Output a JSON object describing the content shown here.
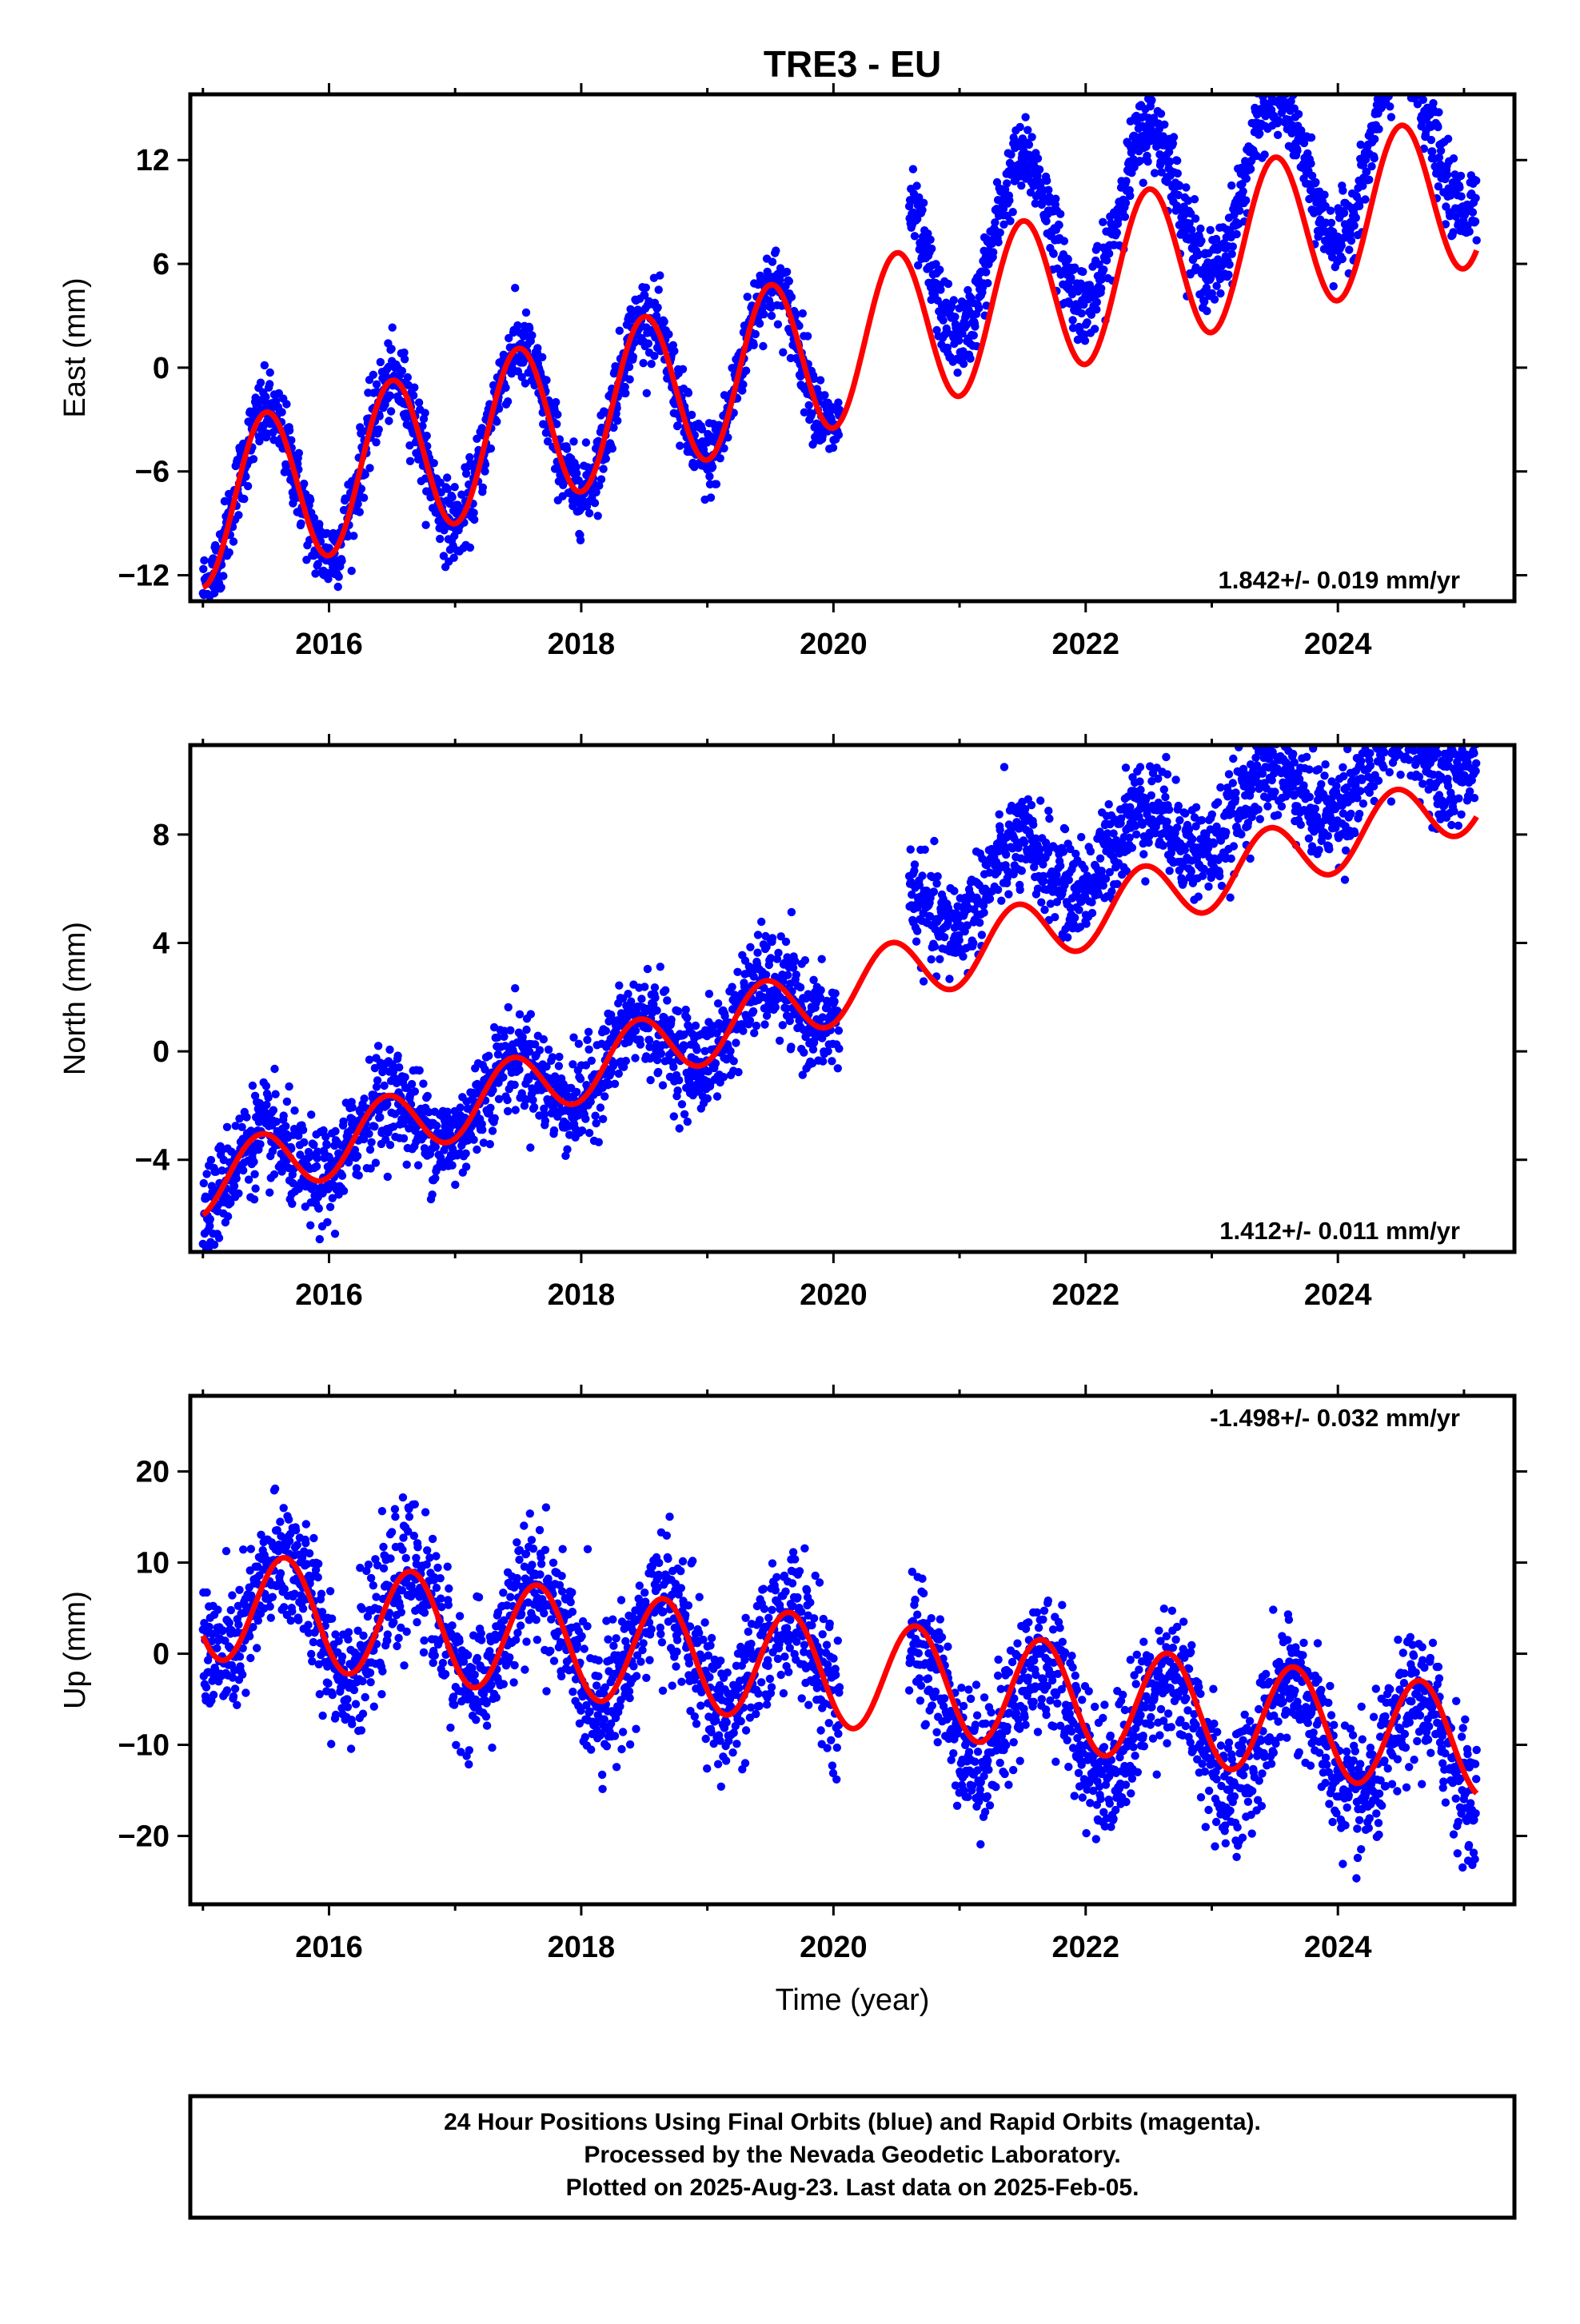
{
  "title": "TRE3 - EU",
  "colors": {
    "data_points": "#0000ff",
    "model_curve": "#ff0000",
    "frame": "#000000",
    "background": "#ffffff"
  },
  "xaxis": {
    "label": "Time (year)",
    "range": [
      2014.9,
      2025.4
    ],
    "major_ticks": [
      2016,
      2018,
      2020,
      2022,
      2024
    ],
    "minor_step": 1
  },
  "footer": {
    "line1": "24 Hour Positions Using Final Orbits (blue) and Rapid Orbits (magenta).",
    "line2": "Processed by the Nevada Geodetic Laboratory.",
    "line3": "Plotted on 2025-Aug-23. Last data on 2025-Feb-05."
  },
  "chart_data": [
    {
      "type": "scatter",
      "component": "east",
      "ylabel": "East (mm)",
      "ylim": [
        -13.5,
        15.8
      ],
      "yticks": [
        -12,
        -6,
        0,
        6,
        12
      ],
      "rate_text": "1.842+/- 0.019 mm/yr",
      "rate_position": "bottom-right",
      "data_gap": [
        2020.05,
        2020.6
      ],
      "observations": {
        "range": [
          2015.0,
          2025.1
        ],
        "scatter_mm": 1.1,
        "offset_mm_after_gap": 3.5,
        "approx_points": 3000,
        "model": {
          "reference_year": 2015.0,
          "value_at_reference_mm": -8.1,
          "rate_mm_per_yr": 1.842,
          "annual_amplitude_mm": 4.6,
          "annual_phase_year_fraction": 0.5
        }
      },
      "model_curve": {
        "range": [
          2015.0,
          2025.1
        ],
        "reference_year": 2015.0,
        "value_at_reference_mm": -8.1,
        "rate_mm_per_yr": 1.842,
        "annual_amplitude_mm": 4.6,
        "annual_phase_year_fraction": 0.5
      }
    },
    {
      "type": "scatter",
      "component": "north",
      "ylabel": "North (mm)",
      "ylim": [
        -7.4,
        11.3
      ],
      "yticks": [
        -4,
        0,
        4,
        8
      ],
      "rate_text": "1.412+/- 0.011 mm/yr",
      "rate_position": "bottom-right",
      "data_gap": [
        2020.05,
        2020.6
      ],
      "observations": {
        "range": [
          2015.0,
          2025.1
        ],
        "scatter_mm": 0.9,
        "offset_mm_after_gap": 2.2,
        "approx_points": 3000,
        "model": {
          "reference_year": 2015.0,
          "value_at_reference_mm": -4.9,
          "rate_mm_per_yr": 1.412,
          "annual_amplitude_mm": 1.2,
          "annual_phase_year_fraction": 0.45
        }
      },
      "model_curve": {
        "range": [
          2015.0,
          2025.1
        ],
        "reference_year": 2015.0,
        "value_at_reference_mm": -4.9,
        "rate_mm_per_yr": 1.412,
        "annual_amplitude_mm": 1.2,
        "annual_phase_year_fraction": 0.45
      }
    },
    {
      "type": "scatter",
      "component": "up",
      "ylabel": "Up (mm)",
      "ylim": [
        -27.5,
        28.3
      ],
      "yticks": [
        -20,
        -10,
        0,
        10,
        20
      ],
      "rate_text": "-1.498+/- 0.032 mm/yr",
      "rate_position": "top-right",
      "data_gap": [
        2020.05,
        2020.6
      ],
      "observations": {
        "range": [
          2015.0,
          2025.1
        ],
        "scatter_mm": 3.6,
        "offset_mm_after_gap": -2.0,
        "approx_points": 3000,
        "model": {
          "reference_year": 2015.0,
          "value_at_reference_mm": 5.5,
          "rate_mm_per_yr": -1.498,
          "annual_amplitude_mm": 6.0,
          "annual_phase_year_fraction": 0.65
        }
      },
      "model_curve": {
        "range": [
          2015.0,
          2025.1
        ],
        "reference_year": 2015.0,
        "value_at_reference_mm": 5.5,
        "rate_mm_per_yr": -1.498,
        "annual_amplitude_mm": 6.0,
        "annual_phase_year_fraction": 0.65
      }
    }
  ]
}
